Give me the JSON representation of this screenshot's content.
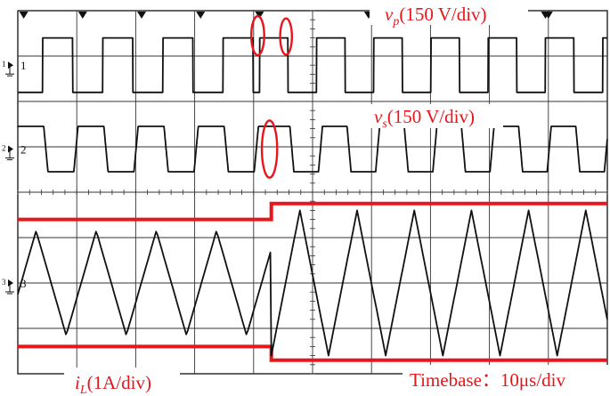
{
  "chart_data": {
    "type": "line",
    "screen": {
      "h_divisions": 10,
      "v_divisions": 8
    },
    "timebase_text": "Timebase：10μs/div",
    "channels": [
      {
        "id": "ch1",
        "number": "1",
        "color": "#111111",
        "label_symbol": "v",
        "label_sub": "p",
        "label_scale": "(150 V/div)",
        "unit_scale": "150 V/div",
        "waveform": "square",
        "center_div": 1.2,
        "amplitude_div": 0.6,
        "segments": [
          {
            "from_div": 0,
            "to_div": 4.1,
            "period_div": 1.02,
            "phase_div": 0.42
          },
          {
            "from_div": 4.1,
            "to_div": 10,
            "period_div": 0.97,
            "phase_div": 0.22
          }
        ]
      },
      {
        "id": "ch2",
        "number": "2",
        "color": "#111111",
        "label_symbol": "v",
        "label_sub": "s",
        "label_scale": "(150 V/div)",
        "unit_scale": "150 V/div",
        "waveform": "trapezoid",
        "center_div": 3.05,
        "amplitude_div": 0.5,
        "segments": [
          {
            "from_div": 0,
            "to_div": 4.3,
            "period_div": 1.02,
            "phase_div": 0.95
          },
          {
            "from_div": 4.3,
            "to_div": 10,
            "period_div": 0.97,
            "phase_div": 0.25
          }
        ]
      },
      {
        "id": "ch3",
        "number": "3",
        "color": "#111111",
        "label_symbol": "i",
        "label_sub": "L",
        "label_scale": "(1A/div)",
        "unit_scale": "1A/div",
        "waveform": "triangle",
        "segments": [
          {
            "from_div": 0,
            "to_div": 4.3,
            "period_div": 1.02,
            "phase_div": 0.82,
            "peak_div": 4.85,
            "valley_div": 7.15
          },
          {
            "from_div": 4.3,
            "to_div": 10,
            "period_div": 0.97,
            "phase_div": 0.42,
            "peak_div": 4.4,
            "valley_div": 7.6
          }
        ]
      }
    ],
    "envelopes": [
      {
        "name": "upper",
        "color": "#e8161b",
        "points": [
          [
            0,
            4.6
          ],
          [
            4.3,
            4.6
          ],
          [
            4.3,
            4.25
          ],
          [
            10,
            4.25
          ]
        ]
      },
      {
        "name": "lower",
        "color": "#e8161b",
        "points": [
          [
            0,
            7.4
          ],
          [
            4.3,
            7.4
          ],
          [
            4.3,
            7.7
          ],
          [
            10,
            7.7
          ]
        ]
      }
    ],
    "highlights": [
      {
        "channel": "ch1",
        "x_div": 4.07,
        "y_div": 0.55,
        "rx_div": 0.11,
        "ry_div": 0.43,
        "color": "#e8161b"
      },
      {
        "channel": "ch1",
        "x_div": 4.55,
        "y_div": 0.57,
        "rx_div": 0.1,
        "ry_div": 0.4,
        "color": "#e8161b"
      },
      {
        "channel": "ch2",
        "x_div": 4.27,
        "y_div": 3.05,
        "rx_div": 0.13,
        "ry_div": 0.63,
        "color": "#e8161b"
      }
    ],
    "trigger_markers_x_div": [
      0.1,
      1.1,
      2.1,
      3.1,
      4.1,
      5.95,
      6.95,
      8.95,
      9.0
    ]
  }
}
